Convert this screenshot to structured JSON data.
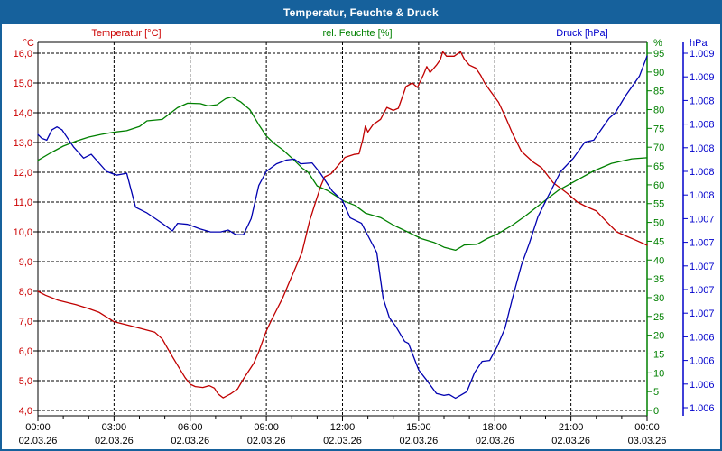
{
  "window": {
    "title": "Temperatur, Feuchte & Druck"
  },
  "legend": [
    {
      "label": "Temperatur [°C]",
      "color": "#cc0000",
      "x": 140
    },
    {
      "label": "rel. Feuchte [%]",
      "color": "#008000",
      "x": 396
    },
    {
      "label": "Druck [hPa]",
      "color": "#0000cc",
      "x": 645
    }
  ],
  "chart_data": {
    "type": "line",
    "title": "Temperatur, Feuchte & Druck",
    "grid": true,
    "x_axis": {
      "hours": [
        0,
        3,
        6,
        9,
        12,
        15,
        18,
        21,
        24
      ],
      "time_labels": [
        "00:00",
        "03:00",
        "06:00",
        "09:00",
        "12:00",
        "15:00",
        "18:00",
        "21:00",
        "00:00"
      ],
      "date_labels": [
        "02.03.26",
        "02.03.26",
        "02.03.26",
        "02.03.26",
        "02.03.26",
        "02.03.26",
        "02.03.26",
        "02.03.26",
        "03.03.26"
      ],
      "minor_tick_every_hours": 1,
      "range_hours": [
        0,
        24
      ]
    },
    "y_axis_temp": {
      "header": "°C",
      "color": "#cc0000",
      "side": "left",
      "labels": [
        "16,0",
        "15,0",
        "14,0",
        "13,0",
        "12,0",
        "11,0",
        "10,0",
        "9,0",
        "8,0",
        "7,0",
        "6,0",
        "5,0",
        "4,0"
      ],
      "min": 4,
      "max": 16
    },
    "y_axis_humidity": {
      "header": "%",
      "color": "#008000",
      "side": "right-inner",
      "labels": [
        "95",
        "90",
        "85",
        "80",
        "75",
        "70",
        "65",
        "60",
        "55",
        "50",
        "45",
        "40",
        "35",
        "30",
        "25",
        "20",
        "15",
        "10",
        "5",
        "0"
      ],
      "min": 0,
      "max": 95
    },
    "y_axis_pressure": {
      "header": "hPa",
      "color": "#0000cc",
      "side": "right-outer",
      "labels": [
        "1.009",
        "1.009",
        "1.008",
        "1.008",
        "1.008",
        "1.008",
        "1.008",
        "1.007",
        "1.007",
        "1.007",
        "1.007",
        "1.007",
        "1.006",
        "1.006",
        "1.006",
        "1.006"
      ],
      "min": 1005.5,
      "max": 1009.25
    },
    "series": [
      {
        "name": "Temperatur",
        "unit": "°C",
        "axis": "temp",
        "color": "#c00000",
        "points": [
          [
            0,
            8.0
          ],
          [
            0.3,
            7.87
          ],
          [
            0.8,
            7.7
          ],
          [
            1.5,
            7.55
          ],
          [
            2.0,
            7.42
          ],
          [
            2.4,
            7.3
          ],
          [
            3.0,
            6.98
          ],
          [
            3.6,
            6.85
          ],
          [
            4.2,
            6.72
          ],
          [
            4.6,
            6.63
          ],
          [
            4.9,
            6.4
          ],
          [
            5.1,
            6.1
          ],
          [
            5.3,
            5.8
          ],
          [
            5.55,
            5.45
          ],
          [
            5.8,
            5.1
          ],
          [
            6.0,
            4.88
          ],
          [
            6.2,
            4.8
          ],
          [
            6.5,
            4.77
          ],
          [
            6.75,
            4.83
          ],
          [
            6.95,
            4.75
          ],
          [
            7.1,
            4.55
          ],
          [
            7.3,
            4.42
          ],
          [
            7.6,
            4.56
          ],
          [
            7.87,
            4.72
          ],
          [
            8.1,
            5.06
          ],
          [
            8.5,
            5.58
          ],
          [
            8.7,
            5.97
          ],
          [
            9.0,
            6.67
          ],
          [
            9.2,
            7.03
          ],
          [
            9.65,
            7.79
          ],
          [
            9.9,
            8.3
          ],
          [
            10.15,
            8.8
          ],
          [
            10.4,
            9.3
          ],
          [
            10.7,
            10.35
          ],
          [
            10.9,
            10.9
          ],
          [
            11.15,
            11.55
          ],
          [
            11.3,
            11.85
          ],
          [
            11.55,
            11.95
          ],
          [
            11.9,
            12.3
          ],
          [
            12.1,
            12.5
          ],
          [
            12.45,
            12.6
          ],
          [
            12.65,
            12.62
          ],
          [
            12.8,
            13.1
          ],
          [
            12.9,
            13.55
          ],
          [
            13.0,
            13.35
          ],
          [
            13.2,
            13.6
          ],
          [
            13.5,
            13.78
          ],
          [
            13.75,
            14.18
          ],
          [
            14.0,
            14.08
          ],
          [
            14.2,
            14.15
          ],
          [
            14.5,
            14.88
          ],
          [
            14.75,
            15.0
          ],
          [
            14.95,
            14.85
          ],
          [
            15.2,
            15.3
          ],
          [
            15.32,
            15.55
          ],
          [
            15.45,
            15.35
          ],
          [
            15.7,
            15.6
          ],
          [
            15.85,
            15.78
          ],
          [
            15.95,
            16.05
          ],
          [
            16.1,
            15.9
          ],
          [
            16.4,
            15.9
          ],
          [
            16.65,
            16.05
          ],
          [
            16.8,
            15.8
          ],
          [
            17.0,
            15.6
          ],
          [
            17.25,
            15.5
          ],
          [
            17.45,
            15.25
          ],
          [
            17.6,
            15.0
          ],
          [
            17.85,
            14.7
          ],
          [
            18.15,
            14.35
          ],
          [
            18.45,
            13.8
          ],
          [
            18.7,
            13.3
          ],
          [
            19.05,
            12.7
          ],
          [
            19.5,
            12.35
          ],
          [
            19.85,
            12.15
          ],
          [
            20.3,
            11.65
          ],
          [
            20.85,
            11.3
          ],
          [
            21.25,
            11.0
          ],
          [
            21.6,
            10.85
          ],
          [
            22.0,
            10.7
          ],
          [
            22.45,
            10.3
          ],
          [
            22.8,
            10.0
          ],
          [
            23.2,
            9.85
          ],
          [
            23.55,
            9.72
          ],
          [
            24,
            9.55
          ]
        ]
      },
      {
        "name": "rel. Feuchte",
        "unit": "%",
        "axis": "humidity",
        "color": "#008000",
        "points": [
          [
            0,
            66.5
          ],
          [
            0.5,
            68.5
          ],
          [
            1,
            70.3
          ],
          [
            1.5,
            71.6
          ],
          [
            2,
            72.7
          ],
          [
            2.5,
            73.4
          ],
          [
            3,
            74.0
          ],
          [
            3.5,
            74.4
          ],
          [
            4,
            75.5
          ],
          [
            4.3,
            77.0
          ],
          [
            4.9,
            77.4
          ],
          [
            5.5,
            80.5
          ],
          [
            5.9,
            81.7
          ],
          [
            6.4,
            81.6
          ],
          [
            6.7,
            81.0
          ],
          [
            7.05,
            81.3
          ],
          [
            7.4,
            82.9
          ],
          [
            7.65,
            83.4
          ],
          [
            8.0,
            82.0
          ],
          [
            8.35,
            80.0
          ],
          [
            8.7,
            76.0
          ],
          [
            9.0,
            73.0
          ],
          [
            9.3,
            71.0
          ],
          [
            9.65,
            69.3
          ],
          [
            10.1,
            66.5
          ],
          [
            10.4,
            64.5
          ],
          [
            10.65,
            63.3
          ],
          [
            11.0,
            59.7
          ],
          [
            11.4,
            58.5
          ],
          [
            12.05,
            55.7
          ],
          [
            12.5,
            54.5
          ],
          [
            12.9,
            52.5
          ],
          [
            13.5,
            51.3
          ],
          [
            14.0,
            49.3
          ],
          [
            14.5,
            47.7
          ],
          [
            15.1,
            45.7
          ],
          [
            15.6,
            44.7
          ],
          [
            16.0,
            43.4
          ],
          [
            16.45,
            42.6
          ],
          [
            16.8,
            44.0
          ],
          [
            17.3,
            44.2
          ],
          [
            17.7,
            45.7
          ],
          [
            18.1,
            46.9
          ],
          [
            18.7,
            49.3
          ],
          [
            19.2,
            51.7
          ],
          [
            19.8,
            54.9
          ],
          [
            20.5,
            58.5
          ],
          [
            21.15,
            60.9
          ],
          [
            21.9,
            63.7
          ],
          [
            22.6,
            65.7
          ],
          [
            23.4,
            66.9
          ],
          [
            24,
            67.2
          ]
        ]
      },
      {
        "name": "Druck",
        "unit": "hPa",
        "axis": "pressure",
        "color": "#0000b0",
        "points": [
          [
            0,
            1008.39
          ],
          [
            0.15,
            1008.35
          ],
          [
            0.35,
            1008.33
          ],
          [
            0.55,
            1008.44
          ],
          [
            0.75,
            1008.47
          ],
          [
            0.95,
            1008.44
          ],
          [
            1.1,
            1008.38
          ],
          [
            1.4,
            1008.26
          ],
          [
            1.8,
            1008.14
          ],
          [
            2.1,
            1008.18
          ],
          [
            2.7,
            1008.0
          ],
          [
            3.1,
            1007.96
          ],
          [
            3.5,
            1007.98
          ],
          [
            3.85,
            1007.62
          ],
          [
            4.3,
            1007.56
          ],
          [
            4.9,
            1007.45
          ],
          [
            5.3,
            1007.37
          ],
          [
            5.5,
            1007.45
          ],
          [
            5.9,
            1007.44
          ],
          [
            6.4,
            1007.39
          ],
          [
            6.8,
            1007.36
          ],
          [
            7.2,
            1007.36
          ],
          [
            7.5,
            1007.38
          ],
          [
            7.8,
            1007.33
          ],
          [
            8.1,
            1007.33
          ],
          [
            8.4,
            1007.5
          ],
          [
            8.7,
            1007.85
          ],
          [
            9.0,
            1008.0
          ],
          [
            9.4,
            1008.08
          ],
          [
            9.8,
            1008.12
          ],
          [
            10.1,
            1008.13
          ],
          [
            10.35,
            1008.08
          ],
          [
            10.8,
            1008.09
          ],
          [
            11.1,
            1007.99
          ],
          [
            11.6,
            1007.79
          ],
          [
            12.0,
            1007.69
          ],
          [
            12.3,
            1007.51
          ],
          [
            12.75,
            1007.45
          ],
          [
            13.1,
            1007.27
          ],
          [
            13.35,
            1007.14
          ],
          [
            13.6,
            1006.66
          ],
          [
            13.85,
            1006.45
          ],
          [
            14.1,
            1006.36
          ],
          [
            14.45,
            1006.2
          ],
          [
            14.6,
            1006.18
          ],
          [
            15.0,
            1005.9
          ],
          [
            15.35,
            1005.78
          ],
          [
            15.7,
            1005.65
          ],
          [
            16.0,
            1005.63
          ],
          [
            16.2,
            1005.64
          ],
          [
            16.45,
            1005.6
          ],
          [
            16.9,
            1005.67
          ],
          [
            17.2,
            1005.87
          ],
          [
            17.5,
            1005.99
          ],
          [
            17.8,
            1006.0
          ],
          [
            18.1,
            1006.15
          ],
          [
            18.4,
            1006.34
          ],
          [
            18.7,
            1006.66
          ],
          [
            19.05,
            1007.01
          ],
          [
            19.35,
            1007.23
          ],
          [
            19.7,
            1007.52
          ],
          [
            20.05,
            1007.71
          ],
          [
            20.6,
            1008.0
          ],
          [
            21.1,
            1008.14
          ],
          [
            21.55,
            1008.31
          ],
          [
            21.9,
            1008.33
          ],
          [
            22.5,
            1008.56
          ],
          [
            22.75,
            1008.62
          ],
          [
            23.15,
            1008.8
          ],
          [
            23.7,
            1009.01
          ],
          [
            24,
            1009.22
          ]
        ]
      }
    ]
  },
  "colors": {
    "titlebar_bg": "#16619c",
    "titlebar_text": "#ffffff",
    "window_border": "#16619c",
    "plot_border": "#000000",
    "gridline": "#000000",
    "x_label_text": "#000000"
  }
}
